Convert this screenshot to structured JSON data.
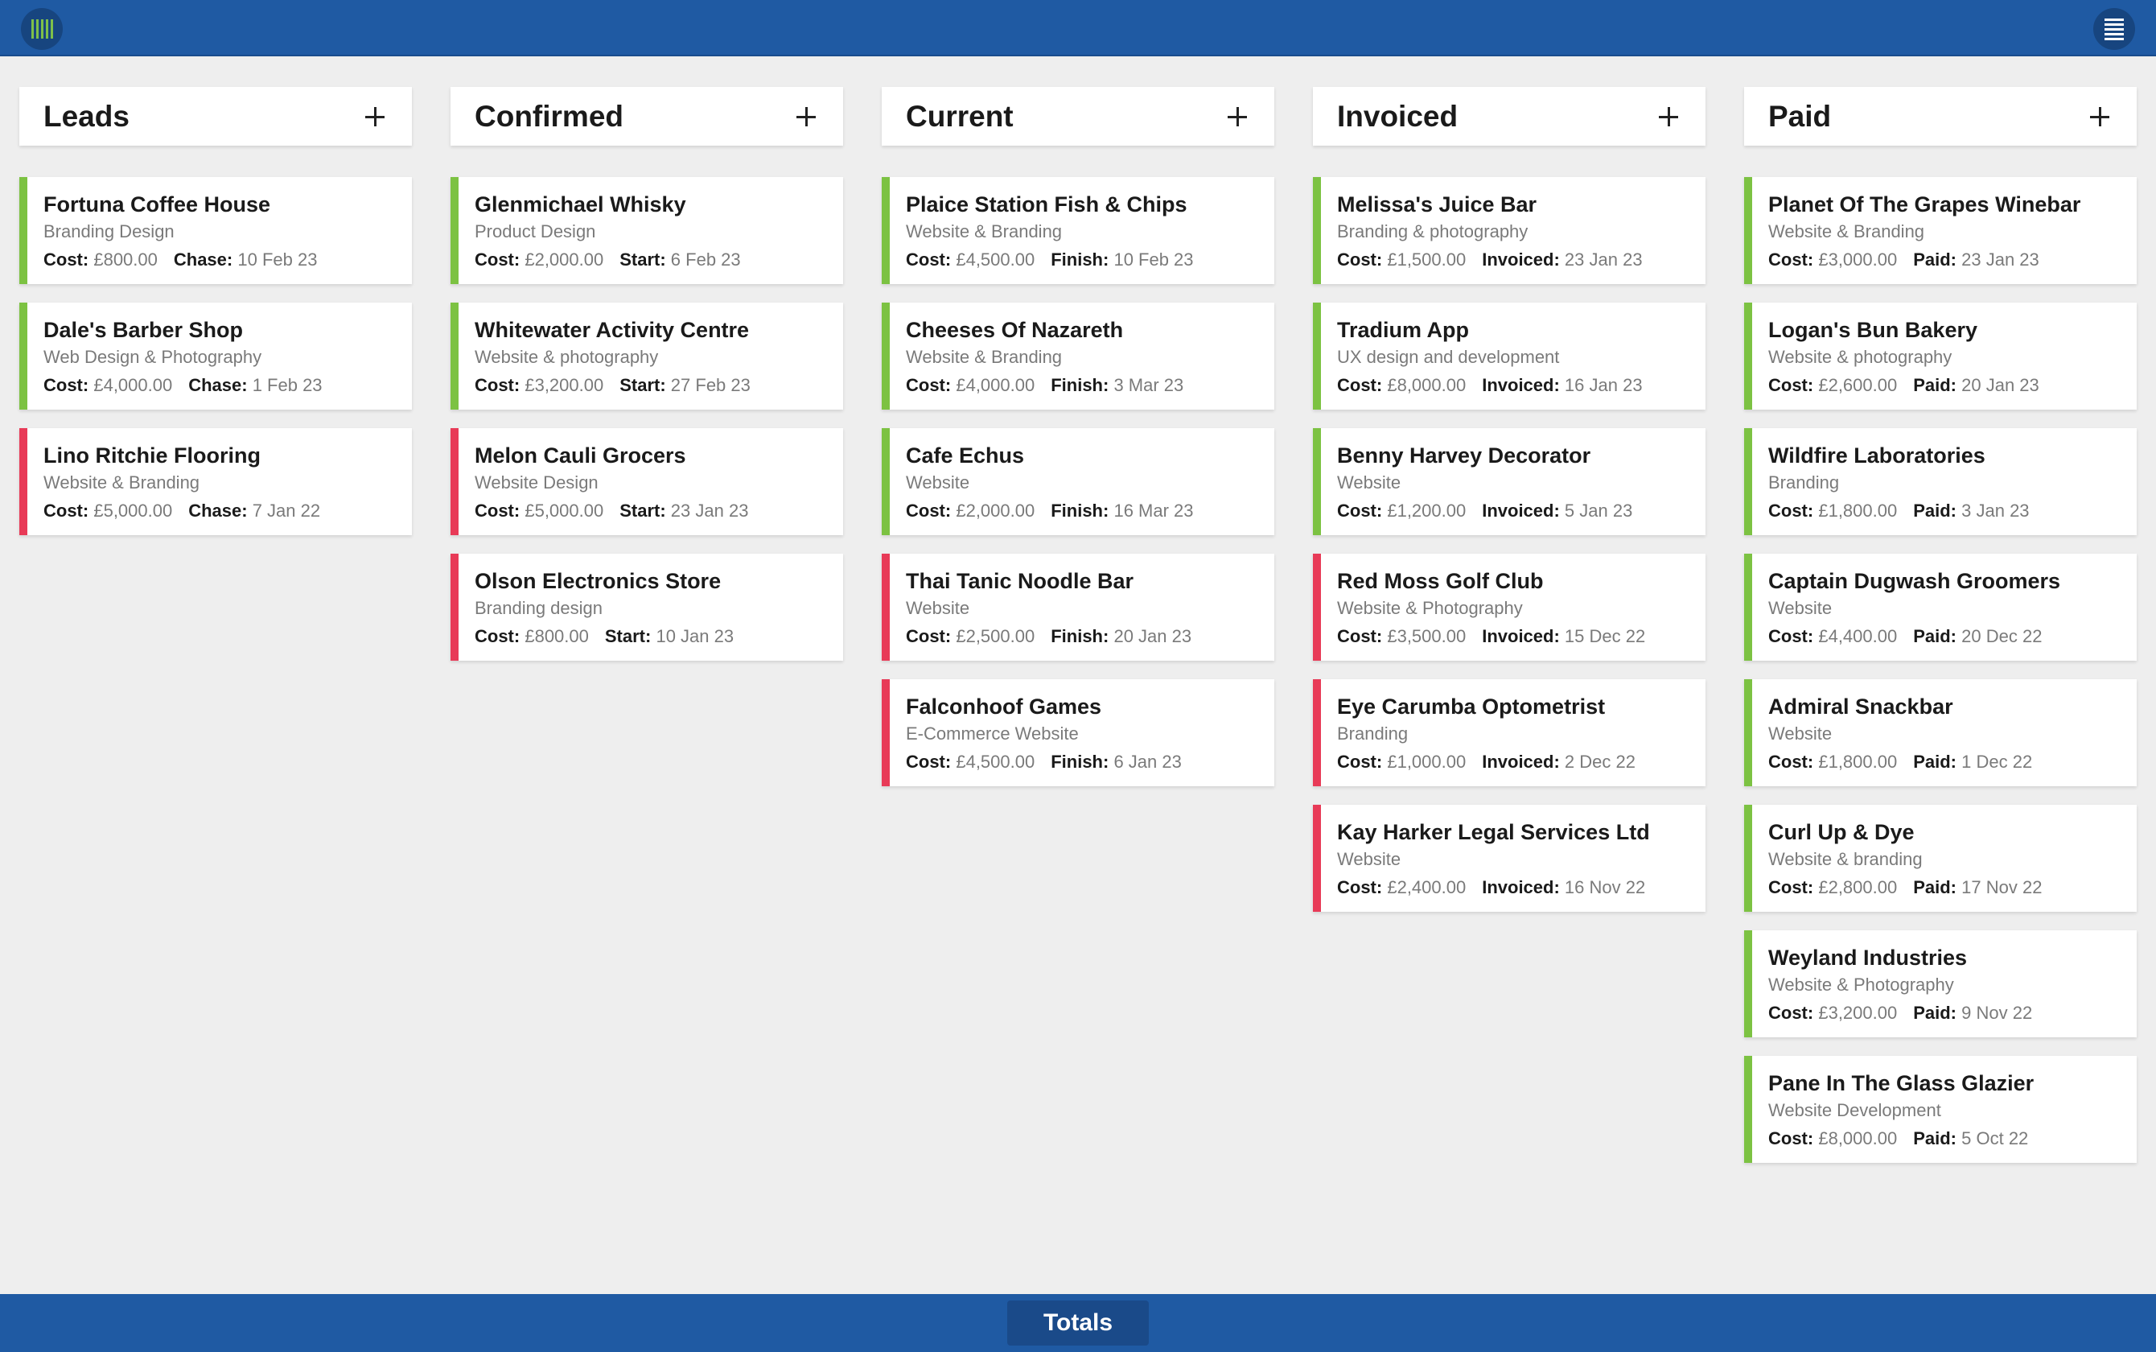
{
  "app": {
    "logo_icon": "barcode-icon",
    "menu_icon": "menu-icon",
    "totals_label": "Totals",
    "accent_green": "#7cc242",
    "accent_red": "#e83a57",
    "bar_color": "#1f5aa3"
  },
  "columns": [
    {
      "title": "Leads",
      "date_label": "Chase:",
      "cards": [
        {
          "name": "Fortuna Coffee House",
          "service": "Branding Design",
          "cost": "£800.00",
          "date": "10 Feb 23",
          "status": "green"
        },
        {
          "name": "Dale's Barber Shop",
          "service": "Web Design & Photography",
          "cost": "£4,000.00",
          "date": "1 Feb 23",
          "status": "green"
        },
        {
          "name": "Lino Ritchie Flooring",
          "service": "Website & Branding",
          "cost": "£5,000.00",
          "date": "7 Jan 22",
          "status": "red"
        }
      ]
    },
    {
      "title": "Confirmed",
      "date_label": "Start:",
      "cards": [
        {
          "name": "Glenmichael Whisky",
          "service": "Product Design",
          "cost": "£2,000.00",
          "date": "6 Feb 23",
          "status": "green"
        },
        {
          "name": "Whitewater Activity Centre",
          "service": "Website & photography",
          "cost": "£3,200.00",
          "date": "27 Feb 23",
          "status": "green"
        },
        {
          "name": "Melon Cauli Grocers",
          "service": "Website Design",
          "cost": "£5,000.00",
          "date": "23 Jan 23",
          "status": "red"
        },
        {
          "name": "Olson Electronics Store",
          "service": "Branding design",
          "cost": "£800.00",
          "date": "10 Jan 23",
          "status": "red"
        }
      ]
    },
    {
      "title": "Current",
      "date_label": "Finish:",
      "cards": [
        {
          "name": "Plaice Station Fish & Chips",
          "service": "Website & Branding",
          "cost": "£4,500.00",
          "date": "10 Feb 23",
          "status": "green"
        },
        {
          "name": "Cheeses Of Nazareth",
          "service": "Website & Branding",
          "cost": "£4,000.00",
          "date": "3 Mar 23",
          "status": "green"
        },
        {
          "name": "Cafe Echus",
          "service": "Website",
          "cost": "£2,000.00",
          "date": "16 Mar 23",
          "status": "green"
        },
        {
          "name": "Thai Tanic Noodle Bar",
          "service": "Website",
          "cost": "£2,500.00",
          "date": "20 Jan 23",
          "status": "red"
        },
        {
          "name": "Falconhoof Games",
          "service": "E-Commerce Website",
          "cost": "£4,500.00",
          "date": "6 Jan 23",
          "status": "red"
        }
      ]
    },
    {
      "title": "Invoiced",
      "date_label": "Invoiced:",
      "cards": [
        {
          "name": "Melissa's Juice Bar",
          "service": "Branding & photography",
          "cost": "£1,500.00",
          "date": "23 Jan 23",
          "status": "green"
        },
        {
          "name": "Tradium App",
          "service": "UX design and development",
          "cost": "£8,000.00",
          "date": "16 Jan 23",
          "status": "green"
        },
        {
          "name": "Benny Harvey Decorator",
          "service": "Website",
          "cost": "£1,200.00",
          "date": "5 Jan 23",
          "status": "green"
        },
        {
          "name": "Red Moss Golf Club",
          "service": "Website & Photography",
          "cost": "£3,500.00",
          "date": "15 Dec 22",
          "status": "red"
        },
        {
          "name": "Eye Carumba Optometrist",
          "service": "Branding",
          "cost": "£1,000.00",
          "date": "2 Dec 22",
          "status": "red"
        },
        {
          "name": "Kay Harker Legal Services Ltd",
          "service": "Website",
          "cost": "£2,400.00",
          "date": "16 Nov 22",
          "status": "red"
        }
      ]
    },
    {
      "title": "Paid",
      "date_label": "Paid:",
      "cards": [
        {
          "name": "Planet Of The Grapes Winebar",
          "service": "Website & Branding",
          "cost": "£3,000.00",
          "date": "23 Jan 23",
          "status": "green"
        },
        {
          "name": "Logan's Bun Bakery",
          "service": "Website & photography",
          "cost": "£2,600.00",
          "date": "20 Jan 23",
          "status": "green"
        },
        {
          "name": "Wildfire Laboratories",
          "service": "Branding",
          "cost": "£1,800.00",
          "date": "3 Jan 23",
          "status": "green"
        },
        {
          "name": "Captain Dugwash Groomers",
          "service": "Website",
          "cost": "£4,400.00",
          "date": "20 Dec 22",
          "status": "green"
        },
        {
          "name": "Admiral Snackbar",
          "service": "Website",
          "cost": "£1,800.00",
          "date": "1 Dec 22",
          "status": "green"
        },
        {
          "name": "Curl Up & Dye",
          "service": "Website & branding",
          "cost": "£2,800.00",
          "date": "17 Nov 22",
          "status": "green"
        },
        {
          "name": "Weyland Industries",
          "service": "Website & Photography",
          "cost": "£3,200.00",
          "date": "9 Nov 22",
          "status": "green"
        },
        {
          "name": "Pane In The Glass Glazier",
          "service": "Website Development",
          "cost": "£8,000.00",
          "date": "5 Oct 22",
          "status": "green"
        }
      ]
    }
  ],
  "cost_label": "Cost:"
}
